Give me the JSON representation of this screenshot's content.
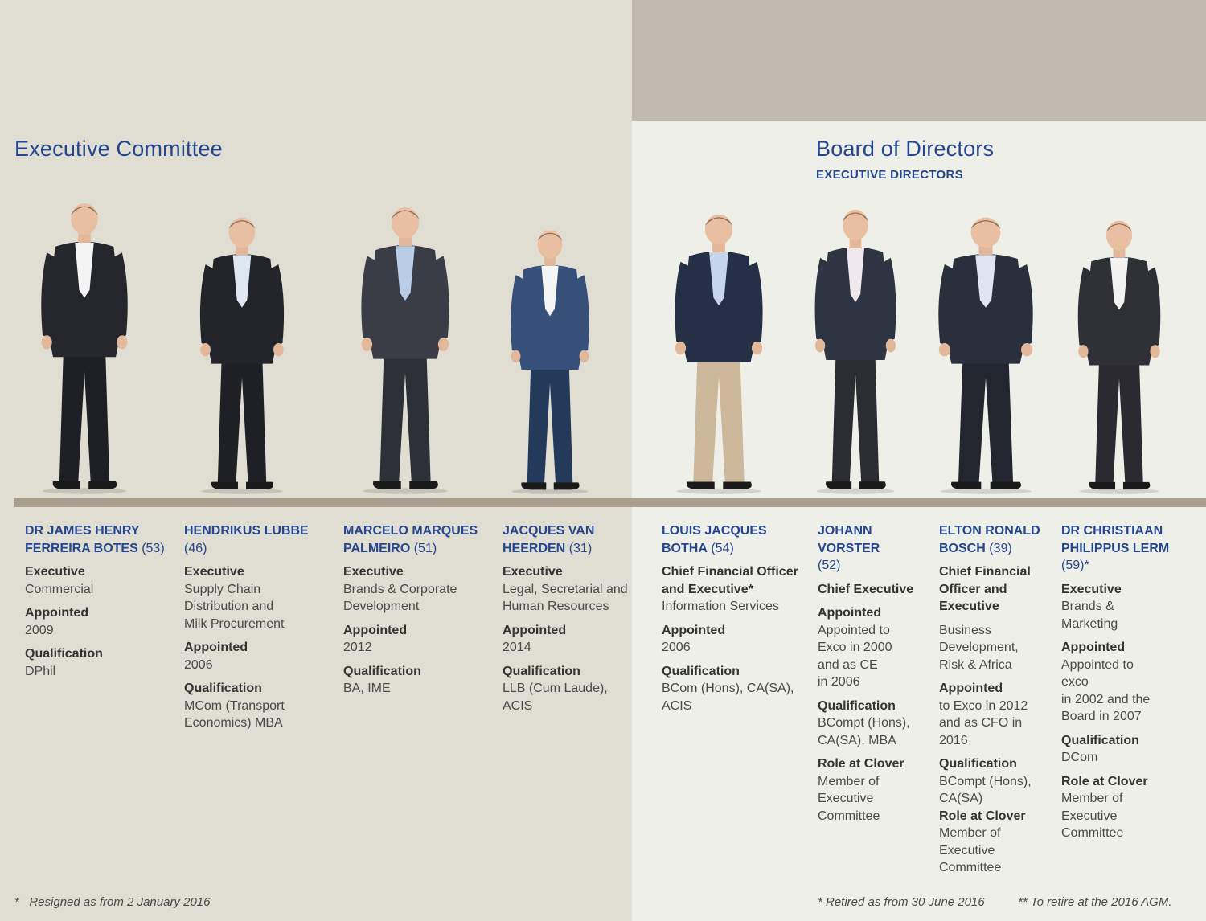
{
  "exco": {
    "title": "Executive Committee",
    "members": [
      {
        "name": "DR JAMES HENRY FERREIRA BOTES",
        "age": "(53)",
        "role_label": "Executive",
        "role_value": "Commercial",
        "appointed_label": "Appointed",
        "appointed_value": "2009",
        "qual_label": "Qualification",
        "qual_value": "DPhil"
      },
      {
        "name": "HENDRIKUS LUBBE",
        "age": "(46)",
        "role_label": "Executive",
        "role_value": "Supply Chain\nDistribution and\nMilk Procurement",
        "appointed_label": "Appointed",
        "appointed_value": "2006",
        "qual_label": "Qualification",
        "qual_value": "MCom (Transport\nEconomics) MBA"
      },
      {
        "name": "MARCELO MARQUES PALMEIRO",
        "age": "(51)",
        "role_label": "Executive",
        "role_value": "Brands & Corporate\nDevelopment",
        "appointed_label": "Appointed",
        "appointed_value": "2012",
        "qual_label": "Qualification",
        "qual_value": "BA, IME"
      },
      {
        "name": "JACQUES VAN HEERDEN",
        "age": "(31)",
        "role_label": "Executive",
        "role_value": "Legal, Secretarial and\nHuman Resources",
        "appointed_label": "Appointed",
        "appointed_value": "2014",
        "qual_label": "Qualification",
        "qual_value": "LLB (Cum Laude),\nACIS"
      }
    ],
    "footnote": "*   Resigned as from 2 January 2016"
  },
  "board": {
    "title": "Board of Directors",
    "subtitle": "EXECUTIVE DIRECTORS",
    "members": [
      {
        "name": "LOUIS JACQUES BOTHA",
        "age": "(54)",
        "role_label": "Chief Financial Officer\nand Executive*",
        "role_value": "Information Services",
        "appointed_label": "Appointed",
        "appointed_value": "2006",
        "qual_label": "Qualification",
        "qual_value": "BCom (Hons), CA(SA),\nACIS"
      },
      {
        "name": "JOHANN VORSTER",
        "age": "(52)",
        "role_label": "Chief Executive",
        "appointed_label": "Appointed",
        "appointed_value": "Appointed to\nExco in 2000\nand as CE\nin 2006",
        "qual_label": "Qualification",
        "qual_value": "BCompt (Hons),\nCA(SA), MBA",
        "clover_label": "Role at Clover",
        "clover_value": "Member of\nExecutive\nCommittee"
      },
      {
        "name": "ELTON RONALD BOSCH",
        "age": "(39)",
        "role_label": "Chief Financial\nOfficer and\nExecutive",
        "role_value": "Business\nDevelopment,\nRisk & Africa",
        "appointed_label": "Appointed",
        "appointed_value": "to Exco in 2012\nand as CFO in\n2016",
        "qual_label": "Qualification",
        "qual_value": "BCompt (Hons),\nCA(SA)",
        "clover_label": "Role at Clover",
        "clover_value": "Member of\nExecutive\nCommittee"
      },
      {
        "name": "DR CHRISTIAAN PHILIPPUS LERM",
        "age": "(59)*",
        "role_label": "Executive",
        "role_value": "Brands &\nMarketing",
        "appointed_label": "Appointed",
        "appointed_value": "Appointed to\nexco\nin 2002 and the\nBoard in 2007",
        "qual_label": "Qualification",
        "qual_value": "DCom",
        "clover_label": "Role at Clover",
        "clover_value": "Member of\nExecutive\nCommittee"
      }
    ],
    "footnote_1": "* Retired as from 30 June 2016",
    "footnote_2": "** To retire at the 2016 AGM."
  },
  "figures": [
    {
      "alt": "Portrait of Dr James Henry Ferreira Botes",
      "trousers": "#1e1f24",
      "jacket": "#26272d",
      "shirt": "#f4f4f4"
    },
    {
      "alt": "Portrait of Hendrikus Lubbe",
      "trousers": "#1f2026",
      "jacket": "#23242a",
      "shirt": "#dfe7f3"
    },
    {
      "alt": "Portrait of Marcelo Marques Palmeiro",
      "trousers": "#2e3037",
      "jacket": "#3a3d46",
      "shirt": "#b9cde6"
    },
    {
      "alt": "Portrait of Jacques van Heerden",
      "trousers": "#243a5a",
      "jacket": "#36507a",
      "shirt": "#f5f5f5"
    },
    {
      "alt": "Portrait of Louis Jacques Botha",
      "trousers": "#cdb89b",
      "jacket": "#253047",
      "shirt": "#c5d5ea"
    },
    {
      "alt": "Portrait of Johann Vorster",
      "trousers": "#2c2d33",
      "jacket": "#2f3442",
      "shirt": "#efe9ee"
    },
    {
      "alt": "Portrait of Elton Ronald Bosch",
      "trousers": "#23262e",
      "jacket": "#2a2f3c",
      "shirt": "#dde6f2"
    },
    {
      "alt": "Portrait of Dr Christiaan Philippus Lerm",
      "trousers": "#2a2a30",
      "jacket": "#2f3036",
      "shirt": "#f2f2f2"
    }
  ]
}
